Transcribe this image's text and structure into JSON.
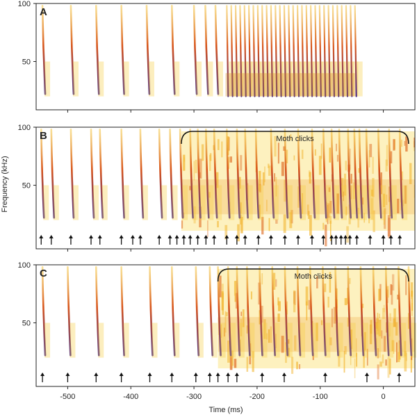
{
  "chart_data": {
    "type": "spectrogram",
    "shared": {
      "xlabel": "Time (ms)",
      "ylabel": "Frequency (kHz)",
      "xlim": [
        -550,
        50
      ],
      "ylim": [
        12,
        100
      ],
      "x_ticks": [
        -500,
        -400,
        -300,
        -200,
        -100,
        0
      ],
      "x_tick_labels": [
        "-500",
        "-400",
        "-300",
        "-200",
        "-100",
        "0"
      ],
      "y_ticks": [
        50,
        100
      ],
      "y_tick_labels": [
        "50",
        "100"
      ]
    },
    "panels": [
      {
        "label": "A",
        "bat_calls_ms": [
          -540,
          -495,
          -455,
          -415,
          -375,
          -335,
          -300,
          -282,
          -266,
          -248,
          -241,
          -234,
          -227,
          -220,
          -213,
          -206,
          -199,
          -192,
          -185,
          -178,
          -171,
          -164,
          -157,
          -150,
          -143,
          -136,
          -129,
          -122,
          -115,
          -108,
          -101,
          -94,
          -87,
          -80,
          -73,
          -66,
          -59,
          -52,
          -45
        ],
        "moth_clicks": null,
        "arrows_ms": []
      },
      {
        "label": "B",
        "bat_calls_ms": [
          -542,
          -526,
          -495,
          -463,
          -449,
          -415,
          -385,
          -355,
          -338,
          -322,
          -306,
          -294,
          -281,
          -268,
          -248,
          -232,
          -219,
          -202,
          -178,
          -156,
          -135,
          -113,
          -95,
          -82,
          -70,
          -56,
          -46,
          -38,
          -27,
          -8,
          9,
          26
        ],
        "moth_clicks": {
          "label": "Moth clicks",
          "start_ms": -320,
          "end_ms": 40
        },
        "arrows_ms": [
          -542,
          -526,
          -495,
          -463,
          -449,
          -415,
          -397,
          -385,
          -355,
          -338,
          -327,
          -316,
          -306,
          -294,
          -281,
          -268,
          -248,
          -232,
          -219,
          -198,
          -178,
          -156,
          -135,
          -113,
          -95,
          -82,
          -75,
          -67,
          -60,
          -53,
          -42,
          -21,
          0,
          12,
          26
        ]
      },
      {
        "label": "C",
        "bat_calls_ms": [
          -540,
          -500,
          -455,
          -415,
          -370,
          -335,
          -297,
          -275,
          -262,
          -246,
          -232,
          -216,
          -196,
          -176,
          -156,
          -136,
          -116,
          -96,
          -76,
          -56,
          -36,
          -16,
          4,
          24,
          40
        ],
        "moth_clicks": {
          "label": "Moth clicks",
          "start_ms": -262,
          "end_ms": 40
        },
        "arrows_ms": [
          -540,
          -500,
          -455,
          -415,
          -370,
          -335,
          -297,
          -275,
          -262,
          -246,
          -232,
          -192,
          -157,
          -92,
          -26,
          25
        ]
      }
    ]
  }
}
